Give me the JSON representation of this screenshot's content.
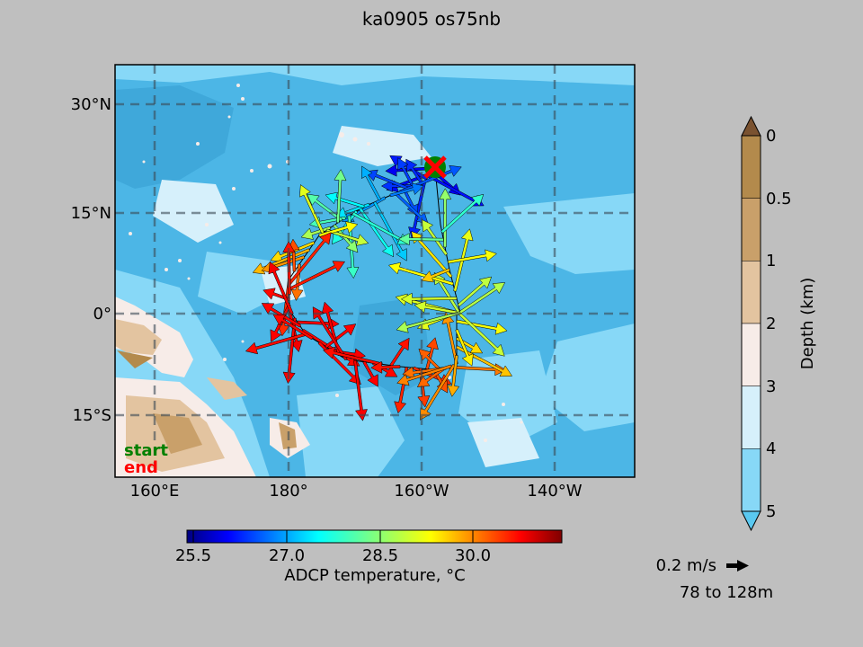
{
  "title": "ka0905 os75nb",
  "map": {
    "lat_ticks": [
      "30°N",
      "15°N",
      "0°",
      "15°S"
    ],
    "lon_ticks": [
      "160°E",
      "180°",
      "160°W",
      "140°W"
    ],
    "legend_start": "start",
    "legend_end": "end",
    "start_color": "#008000",
    "end_color": "#ff0000"
  },
  "depth_colorbar": {
    "label": "Depth (km)",
    "ticks": [
      "0",
      "0.5",
      "1",
      "2",
      "3",
      "4",
      "5"
    ],
    "colors": [
      "#b38a4c",
      "#c9a06a",
      "#e3c4a0",
      "#f7ece8",
      "#d6f0fb",
      "#87d8f7"
    ]
  },
  "temp_colorbar": {
    "label": "ADCP temperature, °C",
    "ticks": [
      "25.5",
      "27.0",
      "28.5",
      "30.0"
    ]
  },
  "scale_arrow": {
    "label": "0.2 m/s",
    "depth_range": "78 to 128m"
  }
}
